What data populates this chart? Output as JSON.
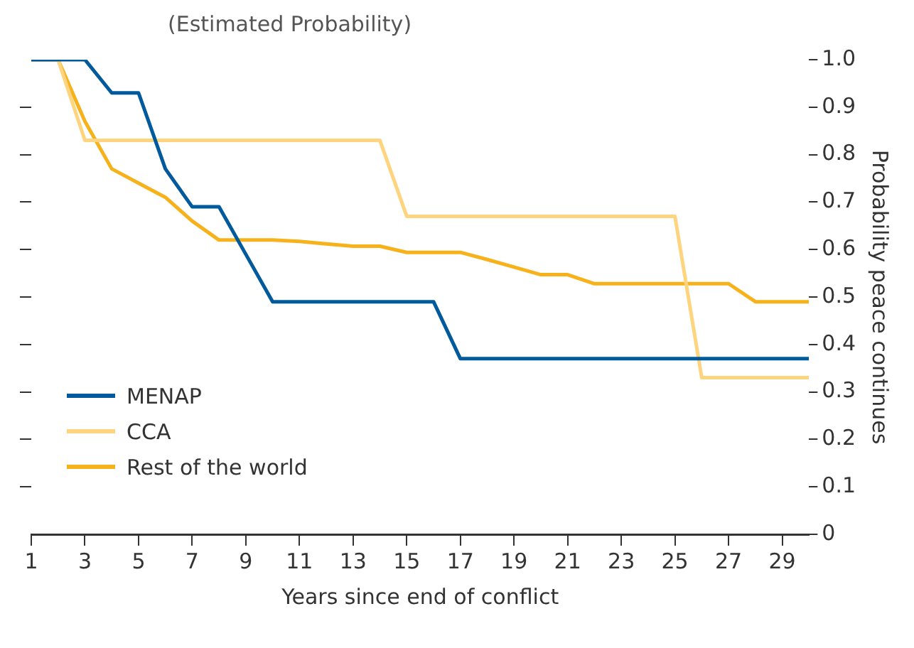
{
  "chart_data": {
    "type": "line",
    "subtitle": "(Estimated Probability)",
    "xlabel": "Years since end of conflict",
    "ylabel": "Probability peace continues",
    "x": [
      1,
      2,
      3,
      4,
      5,
      6,
      7,
      8,
      9,
      10,
      11,
      12,
      13,
      14,
      15,
      16,
      17,
      18,
      19,
      20,
      21,
      22,
      23,
      24,
      25,
      26,
      27,
      28,
      29,
      30
    ],
    "series": [
      {
        "name": "MENAP",
        "color": "#005a9c",
        "values": [
          1,
          1,
          1,
          0.93,
          0.93,
          0.77,
          0.69,
          0.69,
          0.59,
          0.49,
          0.49,
          0.49,
          0.49,
          0.49,
          0.49,
          0.49,
          0.37,
          0.37,
          0.37,
          0.37,
          0.37,
          0.37,
          0.37,
          0.37,
          0.37,
          0.37,
          0.37,
          0.37,
          0.37,
          0.37
        ]
      },
      {
        "name": "CCA",
        "color": "#ffd47f",
        "values": [
          1,
          1,
          0.83,
          0.83,
          0.83,
          0.83,
          0.83,
          0.83,
          0.83,
          0.83,
          0.83,
          0.83,
          0.83,
          0.83,
          0.67,
          0.67,
          0.67,
          0.67,
          0.67,
          0.67,
          0.67,
          0.67,
          0.67,
          0.67,
          0.67,
          0.33,
          0.33,
          0.33,
          0.33,
          0.33
        ]
      },
      {
        "name": "Rest of the world",
        "color": "#f7b21b",
        "values": [
          1,
          1,
          0.87,
          0.77,
          0.74,
          0.71,
          0.66,
          0.62,
          0.62,
          0.62,
          0.617,
          0.612,
          0.607,
          0.607,
          0.594,
          0.594,
          0.594,
          0.579,
          0.563,
          0.547,
          0.547,
          0.528,
          0.528,
          0.528,
          0.528,
          0.528,
          0.528,
          0.49,
          0.49,
          0.49
        ]
      }
    ],
    "xlim": [
      1,
      30
    ],
    "xticks": [
      1,
      3,
      5,
      7,
      9,
      11,
      13,
      15,
      17,
      19,
      21,
      23,
      25,
      27,
      29
    ],
    "ylim": [
      0,
      1
    ],
    "yticks": [
      0,
      0.1,
      0.2,
      0.3,
      0.4,
      0.5,
      0.6,
      0.7,
      0.8,
      0.9,
      {
        "value": 1,
        "label": "1.0"
      }
    ],
    "legend": "bottom left",
    "grid": false,
    "marker": "none",
    "line_style": "solid"
  }
}
